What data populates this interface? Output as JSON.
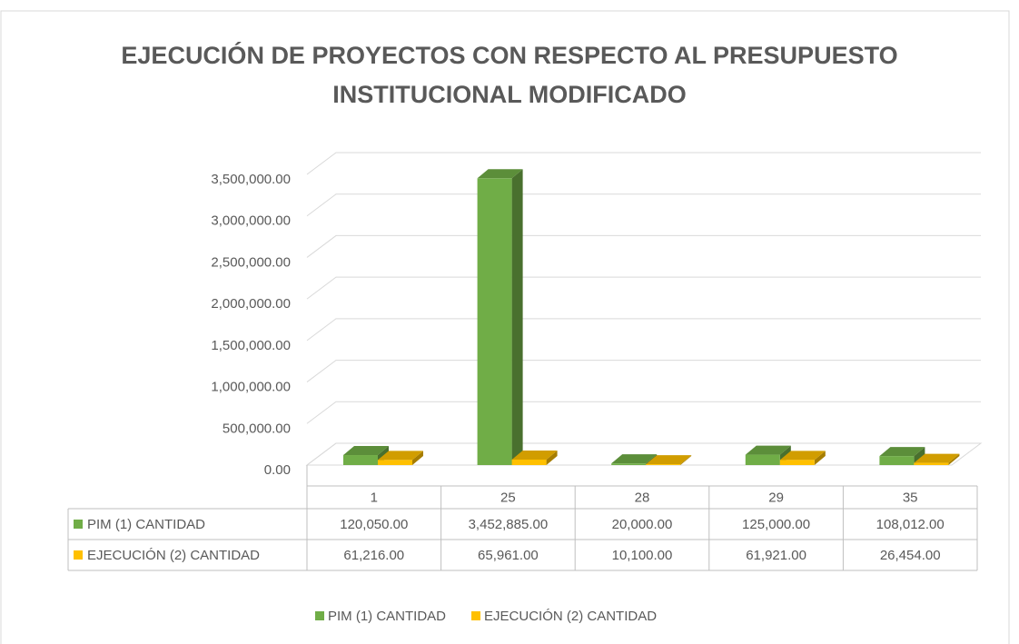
{
  "chart_data": {
    "type": "bar3d",
    "title": "EJECUCIÓN DE PROYECTOS CON RESPECTO AL PRESUPUESTO INSTITUCIONAL MODIFICADO",
    "categories": [
      "1",
      "25",
      "28",
      "29",
      "35"
    ],
    "series": [
      {
        "name": "PIM (1) CANTIDAD",
        "color": "#70ad47",
        "values": [
          120050,
          3452885,
          20000,
          125000,
          108012
        ],
        "value_labels": [
          "120,050.00",
          "3,452,885.00",
          "20,000.00",
          "125,000.00",
          "108,012.00"
        ]
      },
      {
        "name": "EJECUCIÓN (2) CANTIDAD",
        "color": "#ffc000",
        "values": [
          61216,
          65961,
          10100,
          61921,
          26454
        ],
        "value_labels": [
          "61,216.00",
          "65,961.00",
          "10,100.00",
          "61,921.00",
          "26,454.00"
        ]
      }
    ],
    "ylim": [
      0,
      3500000
    ],
    "yticks": [
      {
        "value": 0,
        "label": "0.00"
      },
      {
        "value": 500000,
        "label": "500,000.00"
      },
      {
        "value": 1000000,
        "label": "1,000,000.00"
      },
      {
        "value": 1500000,
        "label": "1,500,000.00"
      },
      {
        "value": 2000000,
        "label": "2,000,000.00"
      },
      {
        "value": 2500000,
        "label": "2,500,000.00"
      },
      {
        "value": 3000000,
        "label": "3,000,000.00"
      },
      {
        "value": 3500000,
        "label": "3,500,000.00"
      }
    ],
    "grid": true,
    "legend": "bottom"
  }
}
